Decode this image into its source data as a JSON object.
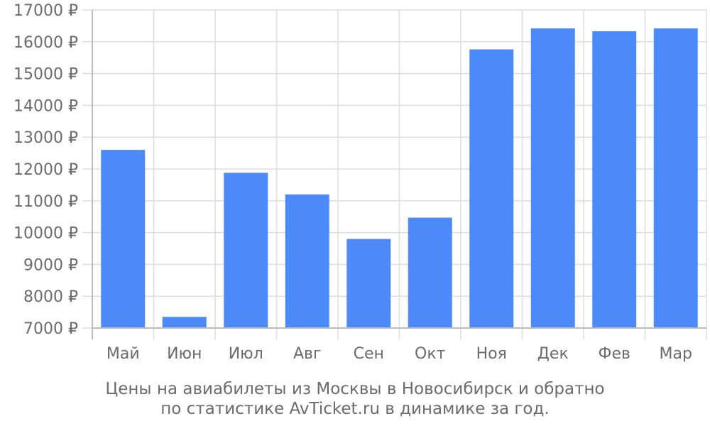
{
  "chart_data": {
    "type": "bar",
    "categories": [
      "Май",
      "Июн",
      "Июл",
      "Авг",
      "Сен",
      "Окт",
      "Ноя",
      "Дек",
      "Фев",
      "Мар"
    ],
    "values": [
      12600,
      7350,
      11880,
      11200,
      9800,
      10470,
      15760,
      16420,
      16330,
      16420
    ],
    "ylim": [
      7000,
      17000
    ],
    "yticks": [
      7000,
      8000,
      9000,
      10000,
      11000,
      12000,
      13000,
      14000,
      15000,
      16000,
      17000
    ],
    "ytick_suffix": " ₽",
    "grid": true,
    "colors": {
      "bar": "#4d8af9",
      "grid": "#dddddd",
      "axis": "#bbbbbb",
      "text": "#6b6b6b"
    }
  },
  "caption": {
    "line1": "Цены на авиабилеты из Москвы в Новосибирск и обратно",
    "line2": "по статистике AvTicket.ru в динамике за год."
  }
}
